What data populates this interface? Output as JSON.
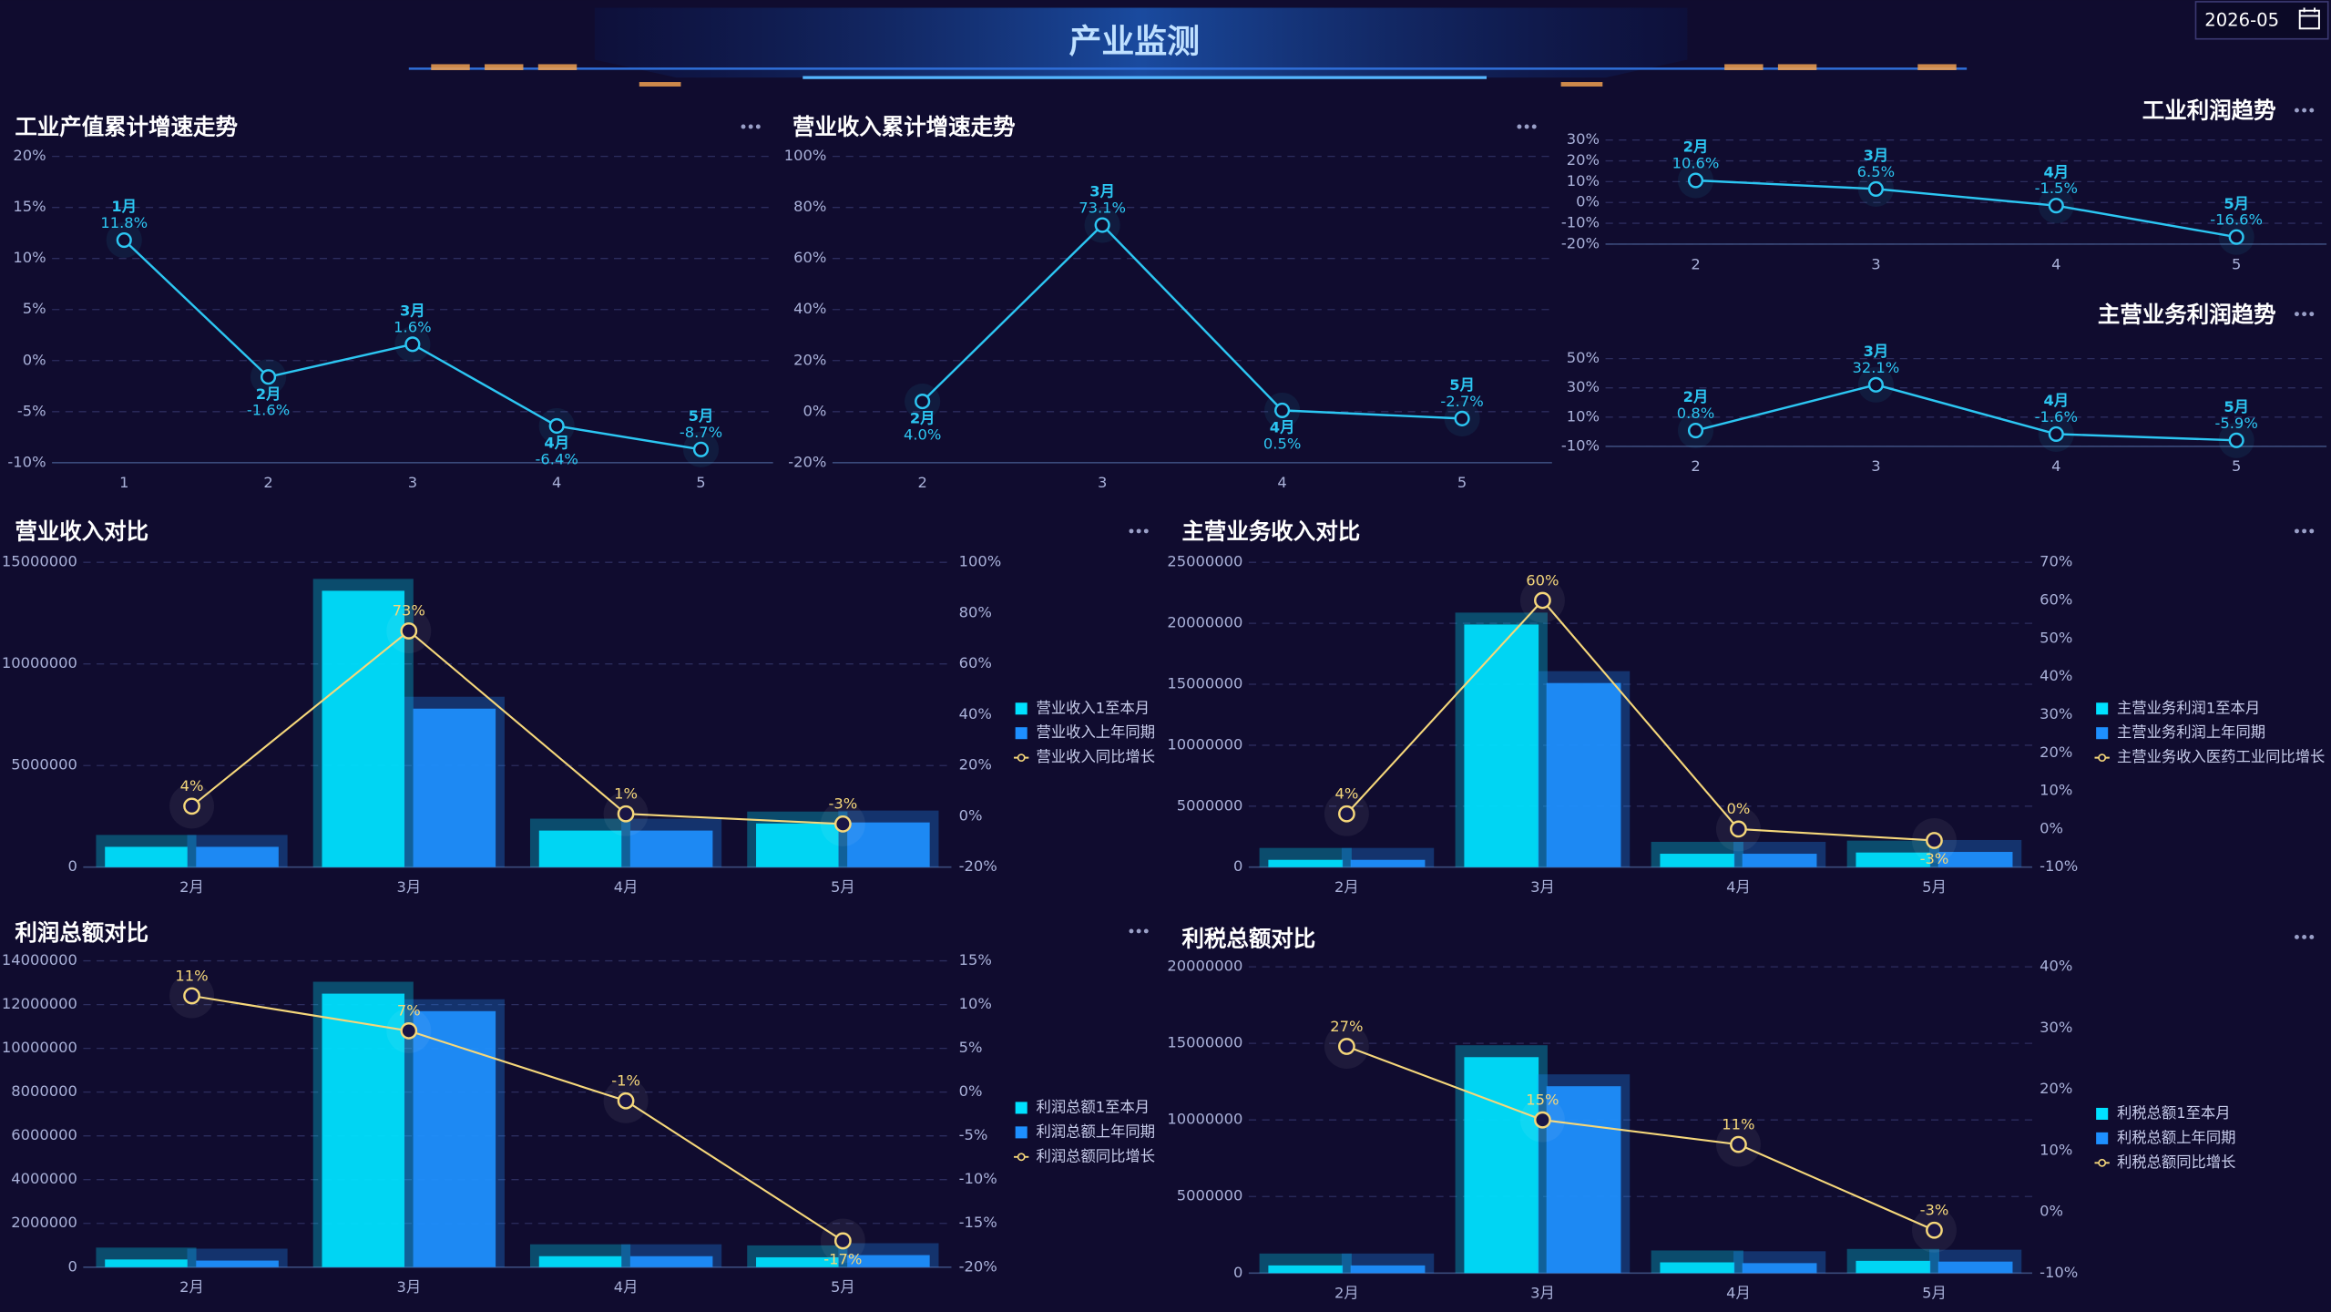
{
  "header": {
    "title": "产业监测",
    "date": "2026-05"
  },
  "chart_data": [
    {
      "type": "line",
      "title": "工业产值累计增速走势",
      "categories": [
        "1",
        "2",
        "3",
        "4",
        "5"
      ],
      "point_labels": [
        "1月",
        "2月",
        "3月",
        "4月",
        "5月"
      ],
      "values": [
        11.8,
        -1.6,
        1.6,
        -6.4,
        -8.7
      ],
      "value_labels": [
        "11.8%",
        "-1.6%",
        "1.6%",
        "-6.4%",
        "-8.7%"
      ],
      "color": "#2cc6f2",
      "grid": true,
      "ylim": [
        -10,
        20
      ],
      "yticks": [
        {
          "value": -10,
          "label": "-10%"
        },
        {
          "value": -5,
          "label": "-5%"
        },
        {
          "value": 0,
          "label": "0%"
        },
        {
          "value": 5,
          "label": "5%"
        },
        {
          "value": 10,
          "label": "10%"
        },
        {
          "value": 15,
          "label": "15%"
        },
        {
          "value": 20,
          "label": "20%"
        }
      ]
    },
    {
      "type": "line",
      "title": "营业收入累计增速走势",
      "categories": [
        "2",
        "3",
        "4",
        "5"
      ],
      "point_labels": [
        "2月",
        "3月",
        "4月",
        "5月"
      ],
      "values": [
        4.0,
        73.1,
        0.5,
        -2.7
      ],
      "value_labels": [
        "4.0%",
        "73.1%",
        "0.5%",
        "-2.7%"
      ],
      "color": "#2cc6f2",
      "grid": true,
      "ylim": [
        -20,
        100
      ],
      "yticks": [
        {
          "value": -20,
          "label": "-20%"
        },
        {
          "value": 0,
          "label": "0%"
        },
        {
          "value": 20,
          "label": "20%"
        },
        {
          "value": 40,
          "label": "40%"
        },
        {
          "value": 60,
          "label": "60%"
        },
        {
          "value": 80,
          "label": "80%"
        },
        {
          "value": 100,
          "label": "100%"
        }
      ]
    },
    {
      "type": "line",
      "title": "工业利润趋势",
      "categories": [
        "2",
        "3",
        "4",
        "5"
      ],
      "point_labels": [
        "2月",
        "3月",
        "4月",
        "5月"
      ],
      "values": [
        10.6,
        6.5,
        -1.5,
        -16.6
      ],
      "value_labels": [
        "10.6%",
        "6.5%",
        "-1.5%",
        "-16.6%"
      ],
      "color": "#2cc6f2",
      "grid": true,
      "ylim": [
        -20,
        30
      ],
      "yticks": [
        {
          "value": -20,
          "label": "-20%"
        },
        {
          "value": -10,
          "label": "-10%"
        },
        {
          "value": 0,
          "label": "0%"
        },
        {
          "value": 10,
          "label": "10%"
        },
        {
          "value": 20,
          "label": "20%"
        },
        {
          "value": 30,
          "label": "30%"
        }
      ]
    },
    {
      "type": "line",
      "title": "主营业务利润趋势",
      "categories": [
        "2",
        "3",
        "4",
        "5"
      ],
      "point_labels": [
        "2月",
        "3月",
        "4月",
        "5月"
      ],
      "values": [
        0.8,
        32.1,
        -1.6,
        -5.9
      ],
      "value_labels": [
        "0.8%",
        "32.1%",
        "-1.6%",
        "-5.9%"
      ],
      "color": "#2cc6f2",
      "grid": true,
      "ylim": [
        -10,
        50
      ],
      "yticks": [
        {
          "value": -10,
          "label": "-10%"
        },
        {
          "value": 10,
          "label": "10%"
        },
        {
          "value": 30,
          "label": "30%"
        },
        {
          "value": 50,
          "label": "50%"
        }
      ]
    },
    {
      "type": "combo",
      "title": "营业收入对比",
      "categories": [
        "2月",
        "3月",
        "4月",
        "5月"
      ],
      "legend": "right",
      "grid": true,
      "ylim": [
        0,
        15000000
      ],
      "yticks": [
        0,
        5000000,
        10000000,
        15000000
      ],
      "y2lim": [
        -20,
        100
      ],
      "y2ticks": [
        {
          "value": -20,
          "label": "-20%"
        },
        {
          "value": 0,
          "label": "0%"
        },
        {
          "value": 20,
          "label": "20%"
        },
        {
          "value": 40,
          "label": "40%"
        },
        {
          "value": 60,
          "label": "60%"
        },
        {
          "value": 80,
          "label": "80%"
        },
        {
          "value": 100,
          "label": "100%"
        }
      ],
      "series": [
        {
          "name": "营业收入1至本月",
          "type": "bar",
          "color": "#00e1ff",
          "values": [
            1000000,
            13600000,
            1800000,
            2150000
          ]
        },
        {
          "name": "营业收入上年同期",
          "type": "bar",
          "color": "#1e90ff",
          "values": [
            1000000,
            7800000,
            1800000,
            2200000
          ]
        },
        {
          "name": "营业收入同比增长",
          "type": "line",
          "axis": "y2",
          "color": "#f5d77a",
          "values": [
            4,
            73,
            1,
            -3
          ],
          "value_labels": [
            "4%",
            "73%",
            "1%",
            "-3%"
          ]
        }
      ]
    },
    {
      "type": "combo",
      "title": "主营业务收入对比",
      "categories": [
        "2月",
        "3月",
        "4月",
        "5月"
      ],
      "legend": "right",
      "grid": true,
      "ylim": [
        0,
        25000000
      ],
      "yticks": [
        0,
        5000000,
        10000000,
        15000000,
        20000000,
        25000000
      ],
      "y2lim": [
        -10,
        70
      ],
      "y2ticks": [
        {
          "value": -10,
          "label": "-10%"
        },
        {
          "value": 0,
          "label": "0%"
        },
        {
          "value": 10,
          "label": "10%"
        },
        {
          "value": 20,
          "label": "20%"
        },
        {
          "value": 30,
          "label": "30%"
        },
        {
          "value": 40,
          "label": "40%"
        },
        {
          "value": 50,
          "label": "50%"
        },
        {
          "value": 60,
          "label": "60%"
        },
        {
          "value": 70,
          "label": "70%"
        }
      ],
      "series": [
        {
          "name": "主营业务利润1至本月",
          "type": "bar",
          "color": "#00e1ff",
          "values": [
            600000,
            19900000,
            1100000,
            1200000
          ]
        },
        {
          "name": "主营业务利润上年同期",
          "type": "bar",
          "color": "#1e90ff",
          "values": [
            600000,
            15100000,
            1100000,
            1250000
          ]
        },
        {
          "name": "主营业务收入医药工业同比增长",
          "type": "line",
          "axis": "y2",
          "color": "#f5d77a",
          "values": [
            4,
            60,
            0,
            -3
          ],
          "value_labels": [
            "4%",
            "60%",
            "0%",
            "-3%"
          ]
        }
      ]
    },
    {
      "type": "combo",
      "title": "利润总额对比",
      "categories": [
        "2月",
        "3月",
        "4月",
        "5月"
      ],
      "legend": "right",
      "grid": true,
      "ylim": [
        0,
        14000000
      ],
      "yticks": [
        0,
        2000000,
        4000000,
        6000000,
        8000000,
        10000000,
        12000000,
        14000000
      ],
      "y2lim": [
        -20,
        15
      ],
      "y2ticks": [
        {
          "value": -20,
          "label": "-20%"
        },
        {
          "value": -15,
          "label": "-15%"
        },
        {
          "value": -10,
          "label": "-10%"
        },
        {
          "value": -5,
          "label": "-5%"
        },
        {
          "value": 0,
          "label": "0%"
        },
        {
          "value": 5,
          "label": "5%"
        },
        {
          "value": 10,
          "label": "10%"
        },
        {
          "value": 15,
          "label": "15%"
        }
      ],
      "series": [
        {
          "name": "利润总额1至本月",
          "type": "bar",
          "color": "#00e1ff",
          "values": [
            350000,
            12500000,
            500000,
            450000
          ]
        },
        {
          "name": "利润总额上年同期",
          "type": "bar",
          "color": "#1e90ff",
          "values": [
            300000,
            11700000,
            500000,
            550000
          ]
        },
        {
          "name": "利润总额同比增长",
          "type": "line",
          "axis": "y2",
          "color": "#f5d77a",
          "values": [
            11,
            7,
            -1,
            -17
          ],
          "value_labels": [
            "11%",
            "7%",
            "-1%",
            "-17%"
          ]
        }
      ]
    },
    {
      "type": "combo",
      "title": "利税总额对比",
      "categories": [
        "2月",
        "3月",
        "4月",
        "5月"
      ],
      "legend": "right",
      "grid": true,
      "ylim": [
        0,
        20000000
      ],
      "yticks": [
        0,
        5000000,
        10000000,
        15000000,
        20000000
      ],
      "y2lim": [
        -10,
        40
      ],
      "y2ticks": [
        {
          "value": -10,
          "label": "-10%"
        },
        {
          "value": 0,
          "label": "0%"
        },
        {
          "value": 10,
          "label": "10%"
        },
        {
          "value": 20,
          "label": "20%"
        },
        {
          "value": 30,
          "label": "30%"
        },
        {
          "value": 40,
          "label": "40%"
        }
      ],
      "series": [
        {
          "name": "利税总额1至本月",
          "type": "bar",
          "color": "#00e1ff",
          "values": [
            500000,
            14100000,
            700000,
            800000
          ]
        },
        {
          "name": "利税总额上年同期",
          "type": "bar",
          "color": "#1e90ff",
          "values": [
            500000,
            12200000,
            650000,
            750000
          ]
        },
        {
          "name": "利税总额同比增长",
          "type": "line",
          "axis": "y2",
          "color": "#f5d77a",
          "values": [
            27,
            15,
            11,
            -3
          ],
          "value_labels": [
            "27%",
            "15%",
            "11%",
            "-3%"
          ]
        }
      ]
    }
  ]
}
